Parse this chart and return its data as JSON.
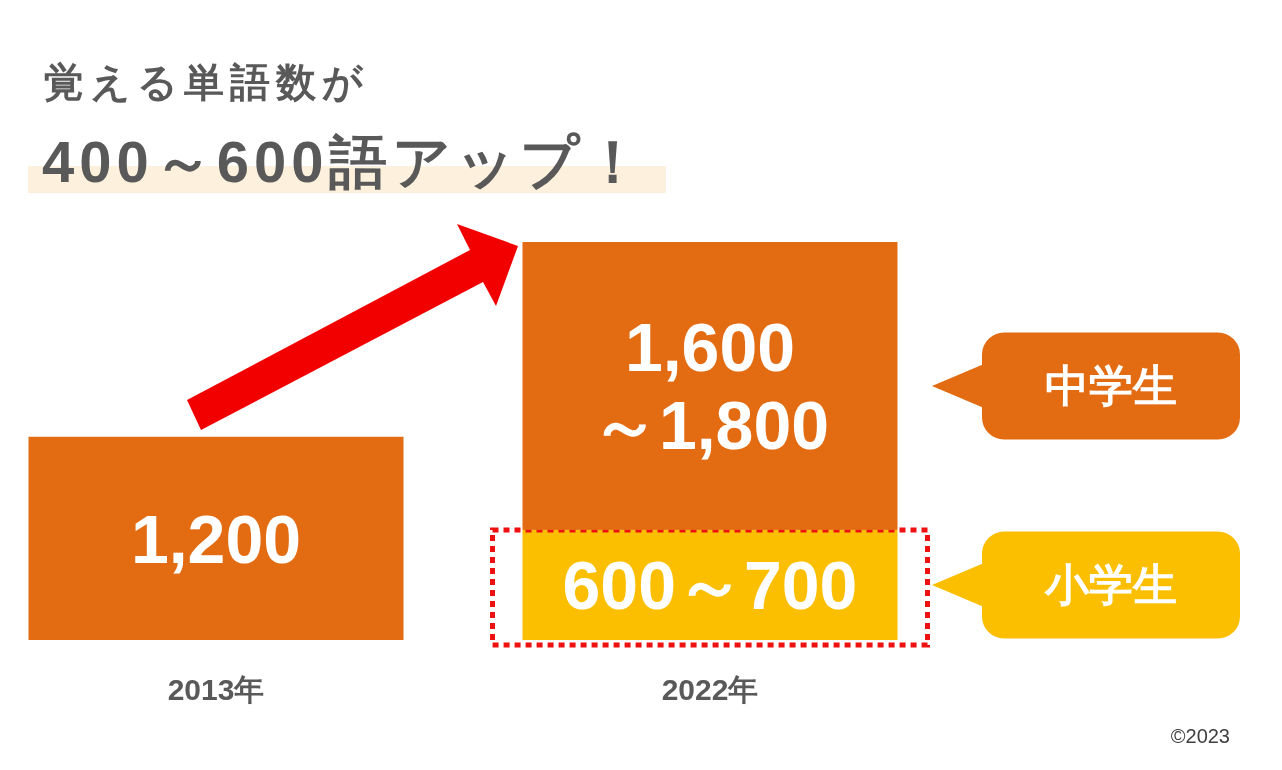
{
  "chart_data": {
    "type": "bar",
    "stacked": true,
    "title": "覚える単語数が",
    "subtitle": "400～600語アップ！",
    "categories": [
      "2013年",
      "2022年"
    ],
    "series": [
      {
        "name": "小学生",
        "color": "#fbbf00",
        "values": [
          null,
          650
        ]
      },
      {
        "name": "中学生",
        "color": "#e36c13",
        "values": [
          1200,
          1700
        ],
        "value_labels": [
          "1,200",
          null
        ]
      }
    ],
    "legend": "right",
    "annotations": [
      "600～700",
      "1,600\n～1,800",
      "©2023"
    ]
  }
}
